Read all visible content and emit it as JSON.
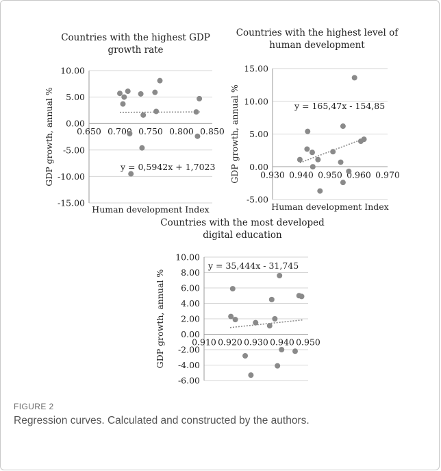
{
  "figure": {
    "label": "FIGURE 2",
    "caption": "Regression curves. Calculated and constructed by the authors."
  },
  "colors": {
    "point": "#8a8a8a",
    "trend": "#8a8a8a",
    "grid": "#d6d6d6",
    "axis": "#9a9a9a"
  },
  "chart_data": [
    {
      "type": "scatter",
      "title": [
        "Countries with the highest GDP",
        "growth rate"
      ],
      "xlabel": "Human development Index",
      "ylabel": "GDP growth, annual %",
      "xlim": [
        0.65,
        0.85
      ],
      "ylim": [
        -15,
        10
      ],
      "xticks": [
        "0.650",
        "0.700",
        "0.750",
        "0.800",
        "0.850"
      ],
      "yticks": [
        "-15.00",
        "-10.00",
        "-5.00",
        "0.00",
        "5.00",
        "10.00"
      ],
      "grid": true,
      "points": [
        {
          "x": 0.7,
          "y": 5.7
        },
        {
          "x": 0.705,
          "y": 3.7
        },
        {
          "x": 0.707,
          "y": 5.0
        },
        {
          "x": 0.713,
          "y": 6.1
        },
        {
          "x": 0.716,
          "y": -1.9
        },
        {
          "x": 0.718,
          "y": -9.5
        },
        {
          "x": 0.734,
          "y": 5.6
        },
        {
          "x": 0.736,
          "y": -4.6
        },
        {
          "x": 0.738,
          "y": 1.6
        },
        {
          "x": 0.757,
          "y": 5.9
        },
        {
          "x": 0.759,
          "y": 2.3
        },
        {
          "x": 0.765,
          "y": 8.1
        },
        {
          "x": 0.824,
          "y": 2.2
        },
        {
          "x": 0.826,
          "y": -2.4
        },
        {
          "x": 0.829,
          "y": 4.7
        }
      ],
      "trendline": {
        "slope": 0.5942,
        "intercept": 1.7023,
        "x_range": [
          0.7,
          0.83
        ]
      },
      "equation": "y = 0,5942x + 1,7023"
    },
    {
      "type": "scatter",
      "title": [
        "Countries with the highest level of",
        "human development"
      ],
      "xlabel": "Human development Index",
      "ylabel": "GDP growth, annual %",
      "xlim": [
        0.93,
        0.97
      ],
      "ylim": [
        -5,
        15
      ],
      "xticks": [
        "0.930",
        "0.940",
        "0.950",
        "0.960",
        "0.970"
      ],
      "yticks": [
        "-5.00",
        "0.00",
        "5.00",
        "10.00",
        "15.00"
      ],
      "grid": true,
      "points": [
        {
          "x": 0.9395,
          "y": 1.1
        },
        {
          "x": 0.942,
          "y": 2.7
        },
        {
          "x": 0.9422,
          "y": 5.4
        },
        {
          "x": 0.9438,
          "y": 2.2
        },
        {
          "x": 0.944,
          "y": 0.0
        },
        {
          "x": 0.9458,
          "y": 1.1
        },
        {
          "x": 0.9465,
          "y": -3.7
        },
        {
          "x": 0.951,
          "y": 2.3
        },
        {
          "x": 0.9537,
          "y": 0.7
        },
        {
          "x": 0.9545,
          "y": 6.2
        },
        {
          "x": 0.9545,
          "y": -2.4
        },
        {
          "x": 0.9565,
          "y": -0.7
        },
        {
          "x": 0.9585,
          "y": 13.6
        },
        {
          "x": 0.9607,
          "y": 3.9
        },
        {
          "x": 0.9618,
          "y": 4.2
        }
      ],
      "trendline": {
        "slope": 165.47,
        "intercept": -154.85,
        "x_range": [
          0.9395,
          0.962
        ]
      },
      "equation": "y = 165,47x - 154,85"
    },
    {
      "type": "scatter",
      "title": [
        "Countries with the most developed",
        "digital education"
      ],
      "xlabel": "Human development Index",
      "ylabel": "GDP growth, annual %",
      "xlim": [
        0.91,
        0.95
      ],
      "ylim": [
        -6,
        10
      ],
      "xticks": [
        "0.910",
        "0.920",
        "0.930",
        "0.940",
        "0.950"
      ],
      "yticks": [
        "-6.00",
        "-4.00",
        "-2.00",
        "0.00",
        "2.00",
        "4.00",
        "6.00",
        "8.00",
        "10.00"
      ],
      "grid": true,
      "points": [
        {
          "x": 0.9203,
          "y": 2.3
        },
        {
          "x": 0.921,
          "y": 5.9
        },
        {
          "x": 0.922,
          "y": 1.9
        },
        {
          "x": 0.9258,
          "y": -2.8
        },
        {
          "x": 0.928,
          "y": -5.3
        },
        {
          "x": 0.9298,
          "y": 1.5
        },
        {
          "x": 0.9352,
          "y": 1.1
        },
        {
          "x": 0.936,
          "y": 4.5
        },
        {
          "x": 0.9372,
          "y": 2.0
        },
        {
          "x": 0.9382,
          "y": -4.1
        },
        {
          "x": 0.939,
          "y": 7.6
        },
        {
          "x": 0.9398,
          "y": -2.0
        },
        {
          "x": 0.945,
          "y": -2.2
        },
        {
          "x": 0.9465,
          "y": 5.0
        },
        {
          "x": 0.9475,
          "y": 4.9
        }
      ],
      "trendline": {
        "slope": 35.444,
        "intercept": -31.745,
        "x_range": [
          0.92,
          0.948
        ]
      },
      "equation": "y = 35,444x - 31,745"
    }
  ]
}
